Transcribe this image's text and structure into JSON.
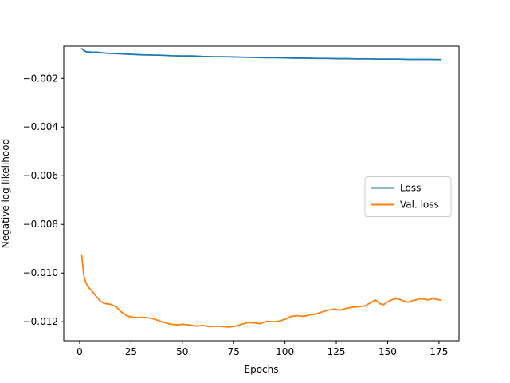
{
  "chart_data": {
    "type": "line",
    "title": "",
    "xlabel": "Epochs",
    "ylabel": "Negative log-likelihood",
    "xlim": [
      -7.75,
      184.75
    ],
    "ylim": [
      -0.01278,
      -0.00068
    ],
    "xticks": [
      0,
      25,
      50,
      75,
      100,
      125,
      150,
      175
    ],
    "yticks": [
      -0.012,
      -0.01,
      -0.008,
      -0.006,
      -0.004,
      -0.002
    ],
    "xtick_labels": [
      "0",
      "25",
      "50",
      "75",
      "100",
      "125",
      "150",
      "175"
    ],
    "ytick_labels": [
      "−0.012",
      "−0.010",
      "−0.008",
      "−0.006",
      "−0.004",
      "−0.002"
    ],
    "grid": false,
    "legend": {
      "position": "center-right"
    },
    "series": [
      {
        "name": "Loss",
        "color": "#1f77b4",
        "x": [
          1,
          2,
          3,
          4,
          5,
          6,
          8,
          10,
          12,
          15,
          20,
          25,
          30,
          35,
          40,
          45,
          50,
          55,
          60,
          65,
          70,
          75,
          80,
          85,
          90,
          95,
          100,
          105,
          110,
          115,
          120,
          125,
          130,
          135,
          140,
          145,
          150,
          155,
          160,
          165,
          170,
          176
        ],
        "y": [
          -0.00078,
          -0.00085,
          -0.0009,
          -0.00092,
          -0.00091,
          -0.00093,
          -0.00092,
          -0.00094,
          -0.00096,
          -0.00097,
          -0.00099,
          -0.00101,
          -0.00103,
          -0.00104,
          -0.00105,
          -0.00107,
          -0.00108,
          -0.00108,
          -0.0011,
          -0.00111,
          -0.00111,
          -0.00112,
          -0.00113,
          -0.00114,
          -0.00115,
          -0.00115,
          -0.00116,
          -0.00117,
          -0.00117,
          -0.00118,
          -0.00118,
          -0.00119,
          -0.00119,
          -0.0012,
          -0.0012,
          -0.00121,
          -0.00121,
          -0.00121,
          -0.00122,
          -0.00122,
          -0.00122,
          -0.00123
        ]
      },
      {
        "name": "Val. loss",
        "color": "#ff7f0e",
        "x": [
          1,
          2,
          3,
          4,
          5,
          6,
          7,
          8,
          10,
          12,
          15,
          18,
          20,
          23,
          25,
          28,
          30,
          33,
          36,
          40,
          44,
          48,
          50,
          53,
          57,
          60,
          63,
          67,
          70,
          73,
          76,
          79,
          82,
          85,
          88,
          91,
          94,
          97,
          100,
          103,
          106,
          109,
          112,
          115,
          118,
          121,
          124,
          127,
          130,
          133,
          136,
          139,
          142,
          144,
          146,
          148,
          150,
          152,
          154,
          156,
          158,
          160,
          162,
          164,
          166,
          168,
          170,
          172,
          174,
          176
        ],
        "y": [
          -0.00925,
          -0.0101,
          -0.0104,
          -0.01055,
          -0.01065,
          -0.01075,
          -0.01085,
          -0.01095,
          -0.01115,
          -0.01125,
          -0.01128,
          -0.0114,
          -0.01158,
          -0.01175,
          -0.0118,
          -0.01183,
          -0.01182,
          -0.01183,
          -0.01188,
          -0.012,
          -0.0121,
          -0.01213,
          -0.0121,
          -0.01213,
          -0.01218,
          -0.01215,
          -0.0122,
          -0.01218,
          -0.0122,
          -0.01222,
          -0.01218,
          -0.0121,
          -0.01203,
          -0.01205,
          -0.01208,
          -0.01198,
          -0.012,
          -0.01198,
          -0.0119,
          -0.01178,
          -0.01175,
          -0.01178,
          -0.01172,
          -0.01168,
          -0.0116,
          -0.01152,
          -0.01148,
          -0.01152,
          -0.01145,
          -0.0114,
          -0.01138,
          -0.01135,
          -0.0112,
          -0.0111,
          -0.01125,
          -0.0113,
          -0.01118,
          -0.0111,
          -0.01105,
          -0.01108,
          -0.01115,
          -0.0112,
          -0.01113,
          -0.0111,
          -0.01105,
          -0.01108,
          -0.0111,
          -0.01105,
          -0.01108,
          -0.01112
        ]
      }
    ]
  }
}
